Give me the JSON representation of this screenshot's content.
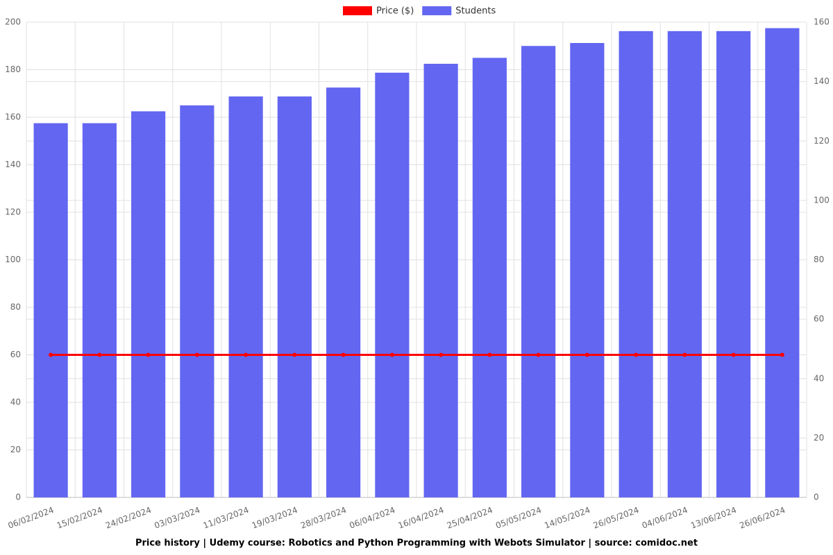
{
  "chart_data": {
    "type": "bar_line",
    "title": "Price history | Udemy course: Robotics and Python Programming with Webots Simulator | source: comidoc.net",
    "categories": [
      "06/02/2024",
      "15/02/2024",
      "24/02/2024",
      "03/03/2024",
      "11/03/2024",
      "19/03/2024",
      "28/03/2024",
      "06/04/2024",
      "16/04/2024",
      "25/04/2024",
      "05/05/2024",
      "14/05/2024",
      "26/05/2024",
      "04/06/2024",
      "13/06/2024",
      "26/06/2024"
    ],
    "series": [
      {
        "name": "Price ($)",
        "color": "#ff0000",
        "type": "line",
        "axis": "y",
        "values": [
          60,
          60,
          60,
          60,
          60,
          60,
          60,
          60,
          60,
          60,
          60,
          60,
          60,
          60,
          60,
          60
        ]
      },
      {
        "name": "Students",
        "color": "#6366f1",
        "type": "bar",
        "axis": "y2",
        "values": [
          126,
          126,
          130,
          132,
          135,
          135,
          138,
          143,
          146,
          148,
          152,
          153,
          157,
          157,
          157,
          158
        ]
      }
    ],
    "ylim": [
      0,
      200
    ],
    "yticks": [
      0,
      20,
      40,
      60,
      80,
      100,
      120,
      140,
      160,
      180,
      200
    ],
    "y2lim": [
      0,
      160
    ],
    "y2ticks": [
      0,
      20,
      40,
      60,
      80,
      100,
      120,
      140,
      160
    ],
    "grid": true,
    "legend": "top"
  }
}
